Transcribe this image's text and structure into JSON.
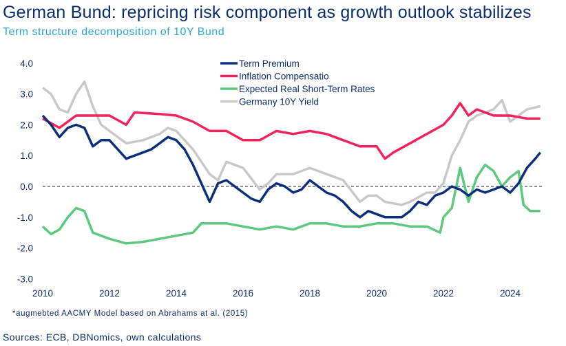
{
  "title": "German Bund: repricing risk component as growth outlook stabilizes",
  "subtitle": "Term structure decomposition of 10Y Bund",
  "note": "*augmebted AACMY Model based on Abrahams at al. (2015)",
  "sources": "Sources: ECB, DBNomics, own calculations",
  "chart_data": {
    "type": "line",
    "title": "German Bund: repricing risk component as growth outlook stabilizes",
    "subtitle": "Term structure decomposition of 10Y Bund",
    "xlabel": "",
    "ylabel": "",
    "xlim": [
      2010,
      2025
    ],
    "ylim": [
      -3.0,
      4.0
    ],
    "x_ticks": [
      "2010",
      "2012",
      "2014",
      "2016",
      "2018",
      "2020",
      "2022",
      "2024"
    ],
    "y_ticks": [
      "4.0",
      "3.0",
      "2.0",
      "1.0",
      "0.0",
      "-1.0",
      "-2.0",
      "-3.0"
    ],
    "reference_line": {
      "y": 0,
      "style": "dashed"
    },
    "grid": false,
    "legend_position": "top-center",
    "series": [
      {
        "name": "Term Premium",
        "color": "#0b2f7a",
        "x": [
          2010,
          2010.25,
          2010.5,
          2010.75,
          2011,
          2011.25,
          2011.5,
          2011.75,
          2012,
          2012.25,
          2012.5,
          2012.75,
          2013,
          2013.25,
          2013.5,
          2013.75,
          2014,
          2014.25,
          2014.5,
          2014.75,
          2015,
          2015.25,
          2015.5,
          2015.75,
          2016,
          2016.25,
          2016.5,
          2016.75,
          2017,
          2017.25,
          2017.5,
          2017.75,
          2018,
          2018.25,
          2018.5,
          2018.75,
          2019,
          2019.25,
          2019.5,
          2019.75,
          2020,
          2020.25,
          2020.5,
          2020.75,
          2021,
          2021.25,
          2021.5,
          2021.75,
          2022,
          2022.25,
          2022.5,
          2022.75,
          2023,
          2023.25,
          2023.5,
          2023.75,
          2024,
          2024.25,
          2024.5,
          2024.75,
          2024.9
        ],
        "y": [
          2.3,
          2.0,
          1.6,
          1.9,
          2.0,
          1.9,
          1.3,
          1.5,
          1.5,
          1.2,
          0.9,
          1.0,
          1.1,
          1.2,
          1.4,
          1.6,
          1.5,
          1.2,
          0.7,
          0.1,
          -0.5,
          0.1,
          0.2,
          0.0,
          -0.2,
          -0.4,
          -0.5,
          -0.1,
          0.1,
          0.0,
          -0.2,
          -0.1,
          0.2,
          0.0,
          -0.2,
          -0.3,
          -0.5,
          -0.8,
          -1.0,
          -0.8,
          -0.9,
          -1.0,
          -1.0,
          -1.0,
          -0.8,
          -0.5,
          -0.6,
          -0.3,
          -0.2,
          0.0,
          -0.1,
          -0.3,
          -0.1,
          -0.2,
          -0.1,
          0.0,
          -0.2,
          0.1,
          0.6,
          0.9,
          1.1
        ]
      },
      {
        "name": "Inflation Compensatio",
        "color": "#f0245a",
        "x": [
          2010,
          2010.5,
          2011,
          2011.5,
          2012,
          2012.5,
          2012.75,
          2013.5,
          2014,
          2014.5,
          2015,
          2015.5,
          2016,
          2016.5,
          2017,
          2017.5,
          2018,
          2018.5,
          2019,
          2019.5,
          2020,
          2020.25,
          2020.5,
          2021,
          2021.5,
          2022,
          2022.25,
          2022.5,
          2022.75,
          2023,
          2023.5,
          2024,
          2024.5,
          2024.9
        ],
        "y": [
          2.2,
          1.9,
          2.3,
          2.3,
          2.3,
          2.0,
          2.4,
          2.35,
          2.3,
          2.1,
          1.8,
          1.8,
          1.5,
          1.5,
          1.8,
          1.7,
          1.8,
          1.7,
          1.5,
          1.3,
          1.3,
          0.9,
          1.1,
          1.4,
          1.7,
          2.0,
          2.3,
          2.7,
          2.3,
          2.5,
          2.3,
          2.3,
          2.2,
          2.2
        ]
      },
      {
        "name": "Expected Real Short-Term Rates",
        "color": "#5cc97e",
        "x": [
          2010,
          2010.25,
          2010.5,
          2010.75,
          2011,
          2011.25,
          2011.5,
          2012,
          2012.5,
          2013,
          2013.5,
          2014,
          2014.5,
          2014.75,
          2015,
          2015.5,
          2016,
          2016.5,
          2017,
          2017.5,
          2018,
          2018.5,
          2019,
          2019.5,
          2020,
          2020.5,
          2021,
          2021.5,
          2021.9,
          2022,
          2022.25,
          2022.5,
          2022.75,
          2023,
          2023.25,
          2023.5,
          2023.75,
          2024,
          2024.25,
          2024.4,
          2024.6,
          2024.9
        ],
        "y": [
          -1.3,
          -1.55,
          -1.4,
          -1.0,
          -0.7,
          -0.8,
          -1.5,
          -1.7,
          -1.85,
          -1.8,
          -1.7,
          -1.6,
          -1.5,
          -1.2,
          -1.2,
          -1.2,
          -1.3,
          -1.4,
          -1.3,
          -1.4,
          -1.2,
          -1.2,
          -1.3,
          -1.3,
          -1.2,
          -1.2,
          -1.3,
          -1.3,
          -1.5,
          -1.0,
          -0.7,
          0.6,
          -0.5,
          0.3,
          0.7,
          0.5,
          0.0,
          0.3,
          0.5,
          -0.6,
          -0.8,
          -0.8
        ]
      },
      {
        "name": "Germany 10Y Yield",
        "color": "#c8c8c8",
        "x": [
          2010,
          2010.25,
          2010.5,
          2010.75,
          2011,
          2011.25,
          2011.5,
          2011.75,
          2012,
          2012.5,
          2013,
          2013.5,
          2013.75,
          2014,
          2014.5,
          2015,
          2015.25,
          2015.5,
          2016,
          2016.5,
          2016.75,
          2017,
          2017.5,
          2018,
          2018.5,
          2019,
          2019.5,
          2019.75,
          2020,
          2020.25,
          2020.75,
          2021,
          2021.5,
          2021.75,
          2022,
          2022.25,
          2022.5,
          2022.75,
          2023,
          2023.5,
          2023.75,
          2024,
          2024.5,
          2024.9
        ],
        "y": [
          3.2,
          3.0,
          2.5,
          2.4,
          3.0,
          3.4,
          2.6,
          2.0,
          1.8,
          1.4,
          1.5,
          1.7,
          1.9,
          1.8,
          1.2,
          0.4,
          0.2,
          0.8,
          0.6,
          -0.1,
          0.1,
          0.4,
          0.4,
          0.6,
          0.4,
          0.2,
          -0.5,
          -0.3,
          -0.3,
          -0.5,
          -0.6,
          -0.5,
          -0.2,
          -0.2,
          0.1,
          1.0,
          1.5,
          2.1,
          2.3,
          2.5,
          2.8,
          2.1,
          2.5,
          2.6
        ]
      }
    ]
  }
}
